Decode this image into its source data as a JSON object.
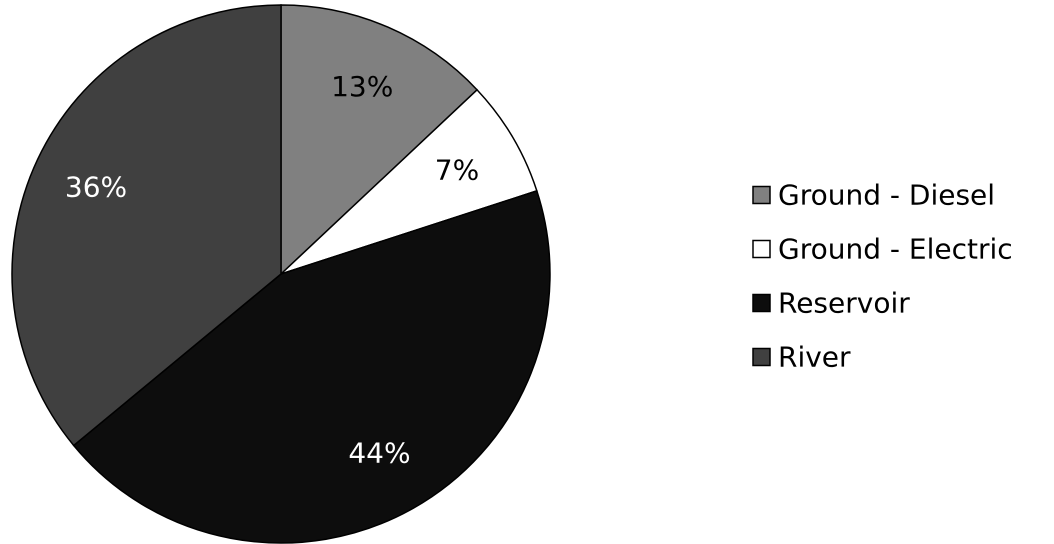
{
  "chart_data": {
    "type": "pie",
    "categories": [
      "Ground - Diesel",
      "Ground - Electric",
      "Reservoir",
      "River"
    ],
    "values": [
      13,
      7,
      44,
      36
    ],
    "value_labels": [
      "13%",
      "7%",
      "44%",
      "36%"
    ],
    "colors": [
      "#808080",
      "#ffffff",
      "#0d0d0d",
      "#404040"
    ],
    "label_colors": [
      "#000000",
      "#000000",
      "#ffffff",
      "#ffffff"
    ],
    "legend": {
      "placement": "right"
    },
    "start": "top, clockwise"
  }
}
